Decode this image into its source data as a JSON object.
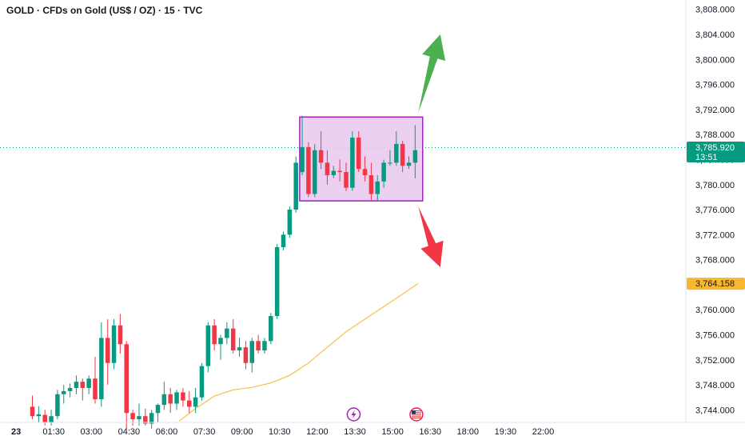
{
  "header": {
    "title": "GOLD · CFDs on Gold (US$ / OZ) · 15 · TVC"
  },
  "colors": {
    "up": "#089981",
    "down": "#f23645",
    "ma": "#f7c04a",
    "box_fill": "#e8c8f0",
    "box_stroke": "#a020c0",
    "arrow_up": "#4caf50",
    "arrow_down": "#f23645",
    "price_tag": "#089981",
    "ma_tag": "#f7b731"
  },
  "chart_data": {
    "type": "candlestick",
    "symbol": "GOLD",
    "timeframe": "15",
    "ylim": [
      3742.0,
      3809.5
    ],
    "y_ticks": [
      3744.0,
      3748.0,
      3752.0,
      3756.0,
      3760.0,
      3764.0,
      3768.0,
      3772.0,
      3776.0,
      3780.0,
      3784.0,
      3788.0,
      3792.0,
      3796.0,
      3800.0,
      3804.0,
      3808.0
    ],
    "y_tick_labels": [
      "3,744.000",
      "3,748.000",
      "3,752.000",
      "3,756.000",
      "3,760.000",
      "3,764.000",
      "3,768.000",
      "3,772.000",
      "3,776.000",
      "3,780.000",
      "3,784.000",
      "3,788.000",
      "3,792.000",
      "3,796.000",
      "3,800.000",
      "3,804.000",
      "3,808.000"
    ],
    "x_labels": [
      {
        "label": "23",
        "bar": -2.6,
        "bold": true
      },
      {
        "label": "01:30",
        "bar": 3.4
      },
      {
        "label": "03:00",
        "bar": 9.4
      },
      {
        "label": "04:30",
        "bar": 15.4
      },
      {
        "label": "06:00",
        "bar": 21.4
      },
      {
        "label": "07:30",
        "bar": 27.4
      },
      {
        "label": "09:00",
        "bar": 33.4
      },
      {
        "label": "10:30",
        "bar": 39.4
      },
      {
        "label": "12:00",
        "bar": 45.4
      },
      {
        "label": "13:30",
        "bar": 51.4
      },
      {
        "label": "15:00",
        "bar": 57.4
      },
      {
        "label": "16:30",
        "bar": 63.4
      },
      {
        "label": "18:00",
        "bar": 69.4
      },
      {
        "label": "19:30",
        "bar": 75.4
      },
      {
        "label": "22:00",
        "bar": 81.4
      }
    ],
    "candles": [
      [
        3744.5,
        3746.3,
        3742.5,
        3743.0
      ],
      [
        3743.0,
        3744.6,
        3742.0,
        3743.3
      ],
      [
        3743.2,
        3744.0,
        3741.5,
        3742.0
      ],
      [
        3742.0,
        3744.0,
        3741.5,
        3743.0
      ],
      [
        3743.0,
        3747.2,
        3742.5,
        3746.5
      ],
      [
        3746.5,
        3748.0,
        3745.0,
        3747.0
      ],
      [
        3747.0,
        3748.2,
        3746.0,
        3747.5
      ],
      [
        3747.5,
        3749.5,
        3746.5,
        3748.5
      ],
      [
        3748.5,
        3749.0,
        3745.5,
        3747.5
      ],
      [
        3747.5,
        3749.5,
        3746.5,
        3749.0
      ],
      [
        3749.0,
        3752.5,
        3745.0,
        3745.7
      ],
      [
        3745.7,
        3758.0,
        3744.5,
        3755.5
      ],
      [
        3755.5,
        3758.5,
        3748.0,
        3751.5
      ],
      [
        3751.5,
        3758.5,
        3750.5,
        3757.5
      ],
      [
        3757.5,
        3759.3,
        3753.0,
        3754.5
      ],
      [
        3754.5,
        3755.0,
        3741.0,
        3743.5
      ],
      [
        3743.5,
        3744.0,
        3741.5,
        3742.5
      ],
      [
        3742.5,
        3745.0,
        3741.5,
        3743.0
      ],
      [
        3743.0,
        3744.2,
        3741.5,
        3741.8
      ],
      [
        3741.8,
        3744.0,
        3741.0,
        3743.5
      ],
      [
        3743.5,
        3745.0,
        3742.0,
        3744.8
      ],
      [
        3744.8,
        3748.5,
        3744.0,
        3746.5
      ],
      [
        3746.5,
        3747.5,
        3743.5,
        3745.0
      ],
      [
        3745.0,
        3747.2,
        3744.0,
        3746.8
      ],
      [
        3746.8,
        3747.5,
        3744.5,
        3745.5
      ],
      [
        3745.5,
        3747.0,
        3743.5,
        3744.5
      ],
      [
        3744.5,
        3747.5,
        3743.5,
        3746.0
      ],
      [
        3746.0,
        3751.5,
        3745.5,
        3751.0
      ],
      [
        3751.0,
        3758.0,
        3750.0,
        3757.5
      ],
      [
        3757.5,
        3758.5,
        3753.5,
        3754.5
      ],
      [
        3754.5,
        3756.0,
        3752.0,
        3755.5
      ],
      [
        3755.5,
        3758.0,
        3754.5,
        3757.0
      ],
      [
        3757.0,
        3758.5,
        3753.0,
        3753.5
      ],
      [
        3753.5,
        3755.5,
        3752.5,
        3754.0
      ],
      [
        3754.0,
        3755.0,
        3750.5,
        3751.5
      ],
      [
        3751.5,
        3755.5,
        3750.0,
        3755.0
      ],
      [
        3755.0,
        3756.0,
        3753.0,
        3753.5
      ],
      [
        3753.5,
        3755.5,
        3753.0,
        3755.0
      ],
      [
        3755.0,
        3759.5,
        3754.5,
        3759.0
      ],
      [
        3759.0,
        3770.5,
        3758.5,
        3770.0
      ],
      [
        3770.0,
        3772.5,
        3769.5,
        3772.0
      ],
      [
        3772.0,
        3776.5,
        3771.5,
        3776.0
      ],
      [
        3776.0,
        3784.5,
        3775.5,
        3783.5
      ],
      [
        3782.0,
        3791.0,
        3781.5,
        3786.0
      ],
      [
        3786.0,
        3786.8,
        3778.0,
        3778.5
      ],
      [
        3778.5,
        3786.5,
        3778.0,
        3785.5
      ],
      [
        3785.5,
        3788.5,
        3782.5,
        3783.5
      ],
      [
        3783.5,
        3785.5,
        3780.0,
        3781.5
      ],
      [
        3781.5,
        3783.0,
        3781.0,
        3782.2
      ],
      [
        3782.2,
        3784.0,
        3780.5,
        3782.0
      ],
      [
        3782.0,
        3783.5,
        3779.0,
        3779.5
      ],
      [
        3779.5,
        3788.5,
        3779.0,
        3787.5
      ],
      [
        3787.5,
        3788.5,
        3782.0,
        3782.5
      ],
      [
        3782.5,
        3784.5,
        3780.5,
        3781.5
      ],
      [
        3781.5,
        3783.5,
        3777.5,
        3778.5
      ],
      [
        3778.5,
        3781.5,
        3777.5,
        3780.5
      ],
      [
        3780.5,
        3784.0,
        3779.5,
        3783.5
      ],
      [
        3783.5,
        3785.5,
        3783.0,
        3783.5
      ],
      [
        3783.5,
        3788.5,
        3783.0,
        3786.5
      ],
      [
        3786.5,
        3787.0,
        3782.0,
        3783.0
      ],
      [
        3783.0,
        3784.5,
        3782.5,
        3783.5
      ],
      [
        3783.5,
        3789.5,
        3781.0,
        3785.5
      ]
    ],
    "ma_series": [
      [
        23.4,
        3742.2
      ],
      [
        26.0,
        3744.2
      ],
      [
        29.0,
        3746.2
      ],
      [
        32.0,
        3747.2
      ],
      [
        35.0,
        3747.6
      ],
      [
        38.0,
        3748.3
      ],
      [
        41.0,
        3749.5
      ],
      [
        44.0,
        3751.5
      ],
      [
        47.0,
        3754.0
      ],
      [
        50.0,
        3756.5
      ],
      [
        53.0,
        3758.5
      ],
      [
        56.0,
        3760.5
      ],
      [
        59.0,
        3762.5
      ],
      [
        61.5,
        3764.2
      ]
    ],
    "current_price": {
      "value": 3785.92,
      "label": "3,785.920",
      "countdown": "13:51"
    },
    "ma_price": {
      "value": 3764.158,
      "label": "3,764.158"
    },
    "range_box": {
      "x0": 42.6,
      "x1": 62.2,
      "y_top": 3790.8,
      "y_bottom": 3777.4
    },
    "arrow_up": {
      "x0": 61.5,
      "y0": 3791.5,
      "x1": 65.0,
      "y1": 3804.0
    },
    "arrow_down": {
      "x0": 61.5,
      "y0": 3776.5,
      "x1": 65.0,
      "y1": 3766.8
    },
    "event_markers": [
      {
        "name": "lightning",
        "bar": 51.2,
        "glyph": "⚡"
      },
      {
        "name": "us-flag",
        "bar": 61.2,
        "glyph": "🇺🇸"
      }
    ]
  }
}
